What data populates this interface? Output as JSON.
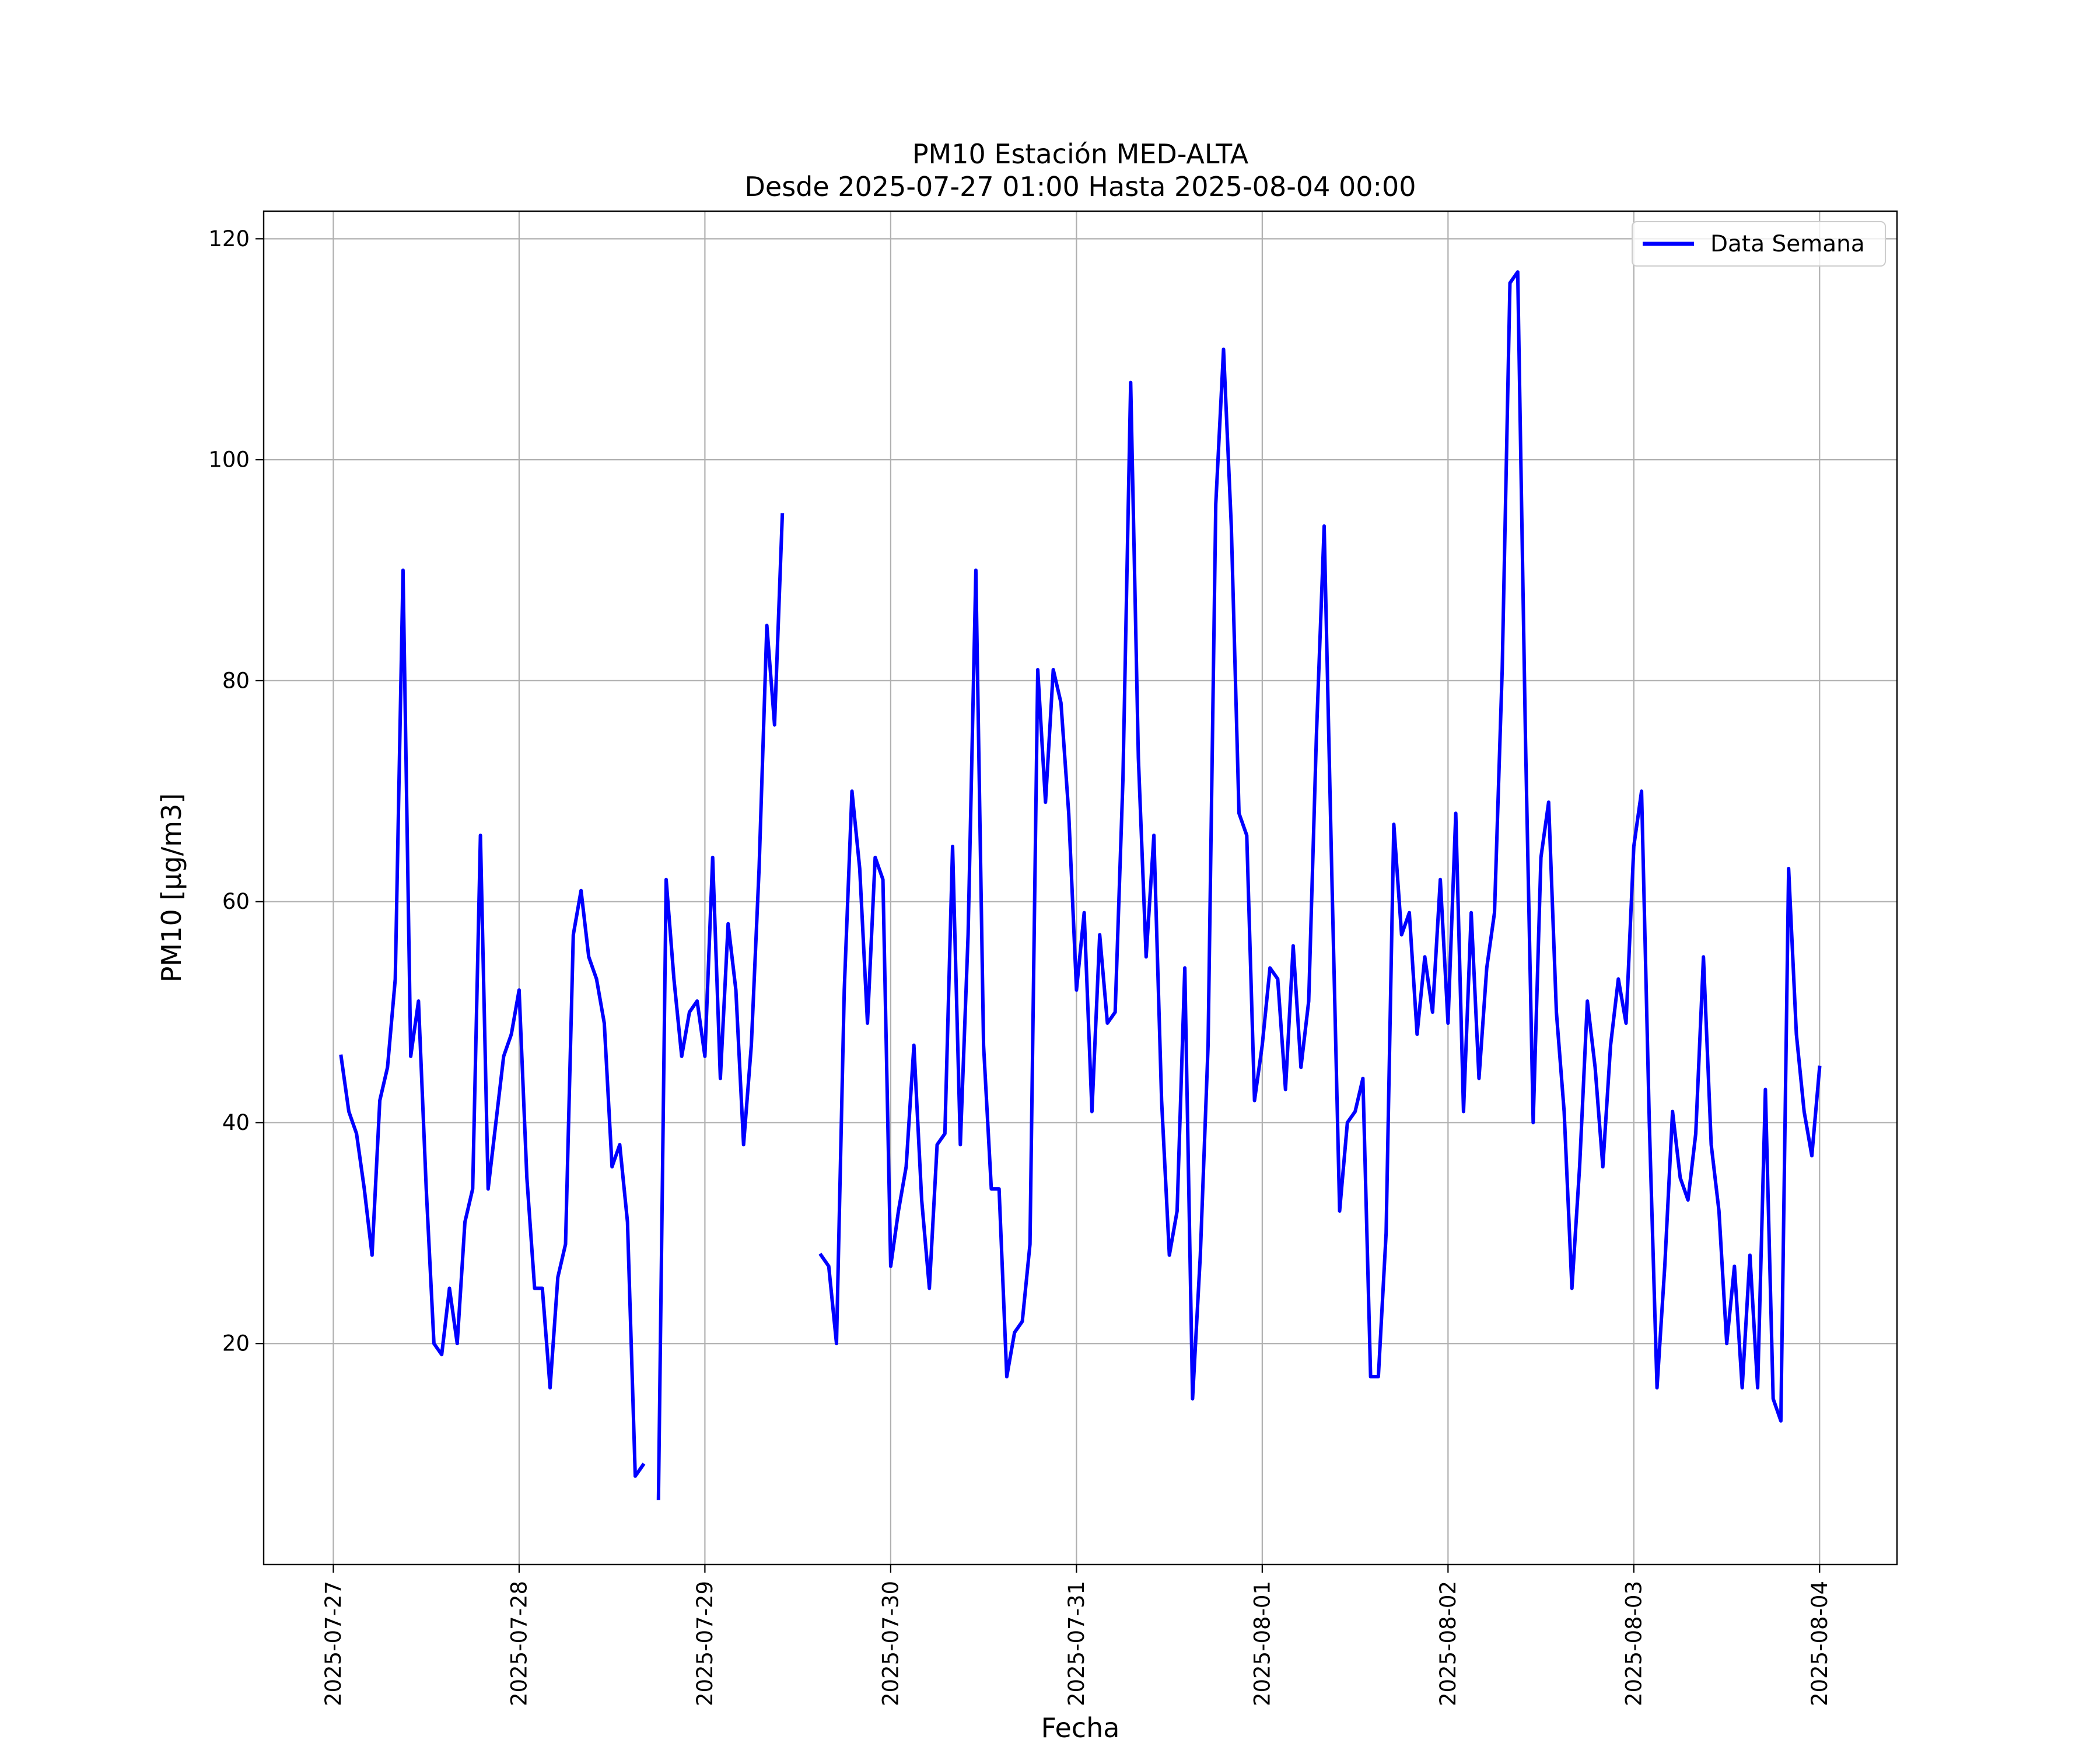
{
  "chart_data": {
    "type": "line",
    "title": "PM10 Estación MED-ALTA",
    "subtitle": "Desde 2025-07-27 01:00 Hasta 2025-08-04 00:00",
    "xlabel": "Fecha",
    "ylabel": "PM10 [μg/m3]",
    "x_tick_labels": [
      "2025-07-27",
      "2025-07-28",
      "2025-07-29",
      "2025-07-30",
      "2025-07-31",
      "2025-08-01",
      "2025-08-02",
      "2025-08-03",
      "2025-08-04"
    ],
    "y_ticks": [
      20,
      40,
      60,
      80,
      100,
      120
    ],
    "xlim": [
      "2025-07-26 15:00",
      "2025-08-04 10:00"
    ],
    "ylim": [
      0,
      122.5
    ],
    "grid": true,
    "legend_position": "top-right",
    "series": [
      {
        "name": "Data Semana",
        "color": "#0000ff",
        "points": [
          [
            "2025-07-27 01:00",
            46
          ],
          [
            "2025-07-27 02:00",
            41
          ],
          [
            "2025-07-27 03:00",
            39
          ],
          [
            "2025-07-27 04:00",
            34
          ],
          [
            "2025-07-27 05:00",
            28
          ],
          [
            "2025-07-27 06:00",
            42
          ],
          [
            "2025-07-27 07:00",
            45
          ],
          [
            "2025-07-27 08:00",
            53
          ],
          [
            "2025-07-27 09:00",
            90
          ],
          [
            "2025-07-27 10:00",
            46
          ],
          [
            "2025-07-27 11:00",
            51
          ],
          [
            "2025-07-27 12:00",
            34
          ],
          [
            "2025-07-27 13:00",
            20
          ],
          [
            "2025-07-27 14:00",
            19
          ],
          [
            "2025-07-27 15:00",
            25
          ],
          [
            "2025-07-27 16:00",
            20
          ],
          [
            "2025-07-27 17:00",
            31
          ],
          [
            "2025-07-27 18:00",
            34
          ],
          [
            "2025-07-27 19:00",
            66
          ],
          [
            "2025-07-27 20:00",
            34
          ],
          [
            "2025-07-27 21:00",
            40
          ],
          [
            "2025-07-27 22:00",
            46
          ],
          [
            "2025-07-27 23:00",
            48
          ],
          [
            "2025-07-28 00:00",
            52
          ],
          [
            "2025-07-28 01:00",
            35
          ],
          [
            "2025-07-28 02:00",
            25
          ],
          [
            "2025-07-28 03:00",
            25
          ],
          [
            "2025-07-28 04:00",
            16
          ],
          [
            "2025-07-28 05:00",
            26
          ],
          [
            "2025-07-28 06:00",
            29
          ],
          [
            "2025-07-28 07:00",
            57
          ],
          [
            "2025-07-28 08:00",
            61
          ],
          [
            "2025-07-28 09:00",
            55
          ],
          [
            "2025-07-28 10:00",
            53
          ],
          [
            "2025-07-28 11:00",
            49
          ],
          [
            "2025-07-28 12:00",
            36
          ],
          [
            "2025-07-28 13:00",
            38
          ],
          [
            "2025-07-28 14:00",
            31
          ],
          [
            "2025-07-28 15:00",
            8
          ],
          [
            "2025-07-28 16:00",
            9
          ],
          [
            "2025-07-28 17:00",
            null
          ],
          [
            "2025-07-28 18:00",
            6
          ],
          [
            "2025-07-28 19:00",
            62
          ],
          [
            "2025-07-28 20:00",
            53
          ],
          [
            "2025-07-28 21:00",
            46
          ],
          [
            "2025-07-28 22:00",
            50
          ],
          [
            "2025-07-28 23:00",
            51
          ],
          [
            "2025-07-29 00:00",
            46
          ],
          [
            "2025-07-29 01:00",
            64
          ],
          [
            "2025-07-29 02:00",
            44
          ],
          [
            "2025-07-29 03:00",
            58
          ],
          [
            "2025-07-29 04:00",
            52
          ],
          [
            "2025-07-29 05:00",
            38
          ],
          [
            "2025-07-29 06:00",
            47
          ],
          [
            "2025-07-29 07:00",
            63
          ],
          [
            "2025-07-29 08:00",
            85
          ],
          [
            "2025-07-29 09:00",
            76
          ],
          [
            "2025-07-29 10:00",
            95
          ],
          [
            "2025-07-29 11:00",
            null
          ],
          [
            "2025-07-29 15:00",
            28
          ],
          [
            "2025-07-29 16:00",
            27
          ],
          [
            "2025-07-29 17:00",
            20
          ],
          [
            "2025-07-29 18:00",
            52
          ],
          [
            "2025-07-29 19:00",
            70
          ],
          [
            "2025-07-29 20:00",
            63
          ],
          [
            "2025-07-29 21:00",
            49
          ],
          [
            "2025-07-29 22:00",
            64
          ],
          [
            "2025-07-29 23:00",
            62
          ],
          [
            "2025-07-30 00:00",
            27
          ],
          [
            "2025-07-30 01:00",
            32
          ],
          [
            "2025-07-30 02:00",
            36
          ],
          [
            "2025-07-30 03:00",
            47
          ],
          [
            "2025-07-30 04:00",
            33
          ],
          [
            "2025-07-30 05:00",
            25
          ],
          [
            "2025-07-30 06:00",
            38
          ],
          [
            "2025-07-30 07:00",
            39
          ],
          [
            "2025-07-30 08:00",
            65
          ],
          [
            "2025-07-30 09:00",
            38
          ],
          [
            "2025-07-30 10:00",
            57
          ],
          [
            "2025-07-30 11:00",
            90
          ],
          [
            "2025-07-30 12:00",
            47
          ],
          [
            "2025-07-30 13:00",
            34
          ],
          [
            "2025-07-30 14:00",
            34
          ],
          [
            "2025-07-30 15:00",
            17
          ],
          [
            "2025-07-30 16:00",
            21
          ],
          [
            "2025-07-30 17:00",
            22
          ],
          [
            "2025-07-30 18:00",
            29
          ],
          [
            "2025-07-30 19:00",
            81
          ],
          [
            "2025-07-30 20:00",
            69
          ],
          [
            "2025-07-30 21:00",
            81
          ],
          [
            "2025-07-30 22:00",
            78
          ],
          [
            "2025-07-30 23:00",
            68
          ],
          [
            "2025-07-31 00:00",
            52
          ],
          [
            "2025-07-31 01:00",
            59
          ],
          [
            "2025-07-31 02:00",
            41
          ],
          [
            "2025-07-31 03:00",
            57
          ],
          [
            "2025-07-31 04:00",
            49
          ],
          [
            "2025-07-31 05:00",
            50
          ],
          [
            "2025-07-31 06:00",
            71
          ],
          [
            "2025-07-31 07:00",
            107
          ],
          [
            "2025-07-31 08:00",
            73
          ],
          [
            "2025-07-31 09:00",
            55
          ],
          [
            "2025-07-31 10:00",
            66
          ],
          [
            "2025-07-31 11:00",
            42
          ],
          [
            "2025-07-31 12:00",
            28
          ],
          [
            "2025-07-31 13:00",
            32
          ],
          [
            "2025-07-31 14:00",
            54
          ],
          [
            "2025-07-31 15:00",
            15
          ],
          [
            "2025-07-31 16:00",
            28
          ],
          [
            "2025-07-31 17:00",
            47
          ],
          [
            "2025-07-31 18:00",
            96
          ],
          [
            "2025-07-31 19:00",
            110
          ],
          [
            "2025-07-31 20:00",
            94
          ],
          [
            "2025-07-31 21:00",
            68
          ],
          [
            "2025-07-31 22:00",
            66
          ],
          [
            "2025-07-31 23:00",
            42
          ],
          [
            "2025-08-01 00:00",
            47
          ],
          [
            "2025-08-01 01:00",
            54
          ],
          [
            "2025-08-01 02:00",
            53
          ],
          [
            "2025-08-01 03:00",
            43
          ],
          [
            "2025-08-01 04:00",
            56
          ],
          [
            "2025-08-01 05:00",
            45
          ],
          [
            "2025-08-01 06:00",
            51
          ],
          [
            "2025-08-01 07:00",
            75
          ],
          [
            "2025-08-01 08:00",
            94
          ],
          [
            "2025-08-01 09:00",
            62
          ],
          [
            "2025-08-01 10:00",
            32
          ],
          [
            "2025-08-01 11:00",
            40
          ],
          [
            "2025-08-01 12:00",
            41
          ],
          [
            "2025-08-01 13:00",
            44
          ],
          [
            "2025-08-01 14:00",
            17
          ],
          [
            "2025-08-01 15:00",
            17
          ],
          [
            "2025-08-01 16:00",
            30
          ],
          [
            "2025-08-01 17:00",
            67
          ],
          [
            "2025-08-01 18:00",
            57
          ],
          [
            "2025-08-01 19:00",
            59
          ],
          [
            "2025-08-01 20:00",
            48
          ],
          [
            "2025-08-01 21:00",
            55
          ],
          [
            "2025-08-01 22:00",
            50
          ],
          [
            "2025-08-01 23:00",
            62
          ],
          [
            "2025-08-02 00:00",
            49
          ],
          [
            "2025-08-02 01:00",
            68
          ],
          [
            "2025-08-02 02:00",
            41
          ],
          [
            "2025-08-02 03:00",
            59
          ],
          [
            "2025-08-02 04:00",
            44
          ],
          [
            "2025-08-02 05:00",
            54
          ],
          [
            "2025-08-02 06:00",
            59
          ],
          [
            "2025-08-02 07:00",
            81
          ],
          [
            "2025-08-02 08:00",
            116
          ],
          [
            "2025-08-02 09:00",
            117
          ],
          [
            "2025-08-02 10:00",
            75
          ],
          [
            "2025-08-02 11:00",
            40
          ],
          [
            "2025-08-02 12:00",
            64
          ],
          [
            "2025-08-02 13:00",
            69
          ],
          [
            "2025-08-02 14:00",
            50
          ],
          [
            "2025-08-02 15:00",
            41
          ],
          [
            "2025-08-02 16:00",
            25
          ],
          [
            "2025-08-02 17:00",
            36
          ],
          [
            "2025-08-02 18:00",
            51
          ],
          [
            "2025-08-02 19:00",
            45
          ],
          [
            "2025-08-02 20:00",
            36
          ],
          [
            "2025-08-02 21:00",
            47
          ],
          [
            "2025-08-02 22:00",
            53
          ],
          [
            "2025-08-02 23:00",
            49
          ],
          [
            "2025-08-03 00:00",
            65
          ],
          [
            "2025-08-03 01:00",
            70
          ],
          [
            "2025-08-03 02:00",
            40
          ],
          [
            "2025-08-03 03:00",
            16
          ],
          [
            "2025-08-03 04:00",
            27
          ],
          [
            "2025-08-03 05:00",
            41
          ],
          [
            "2025-08-03 06:00",
            35
          ],
          [
            "2025-08-03 07:00",
            33
          ],
          [
            "2025-08-03 08:00",
            39
          ],
          [
            "2025-08-03 09:00",
            55
          ],
          [
            "2025-08-03 10:00",
            38
          ],
          [
            "2025-08-03 11:00",
            32
          ],
          [
            "2025-08-03 12:00",
            20
          ],
          [
            "2025-08-03 13:00",
            27
          ],
          [
            "2025-08-03 14:00",
            16
          ],
          [
            "2025-08-03 15:00",
            28
          ],
          [
            "2025-08-03 16:00",
            16
          ],
          [
            "2025-08-03 17:00",
            43
          ],
          [
            "2025-08-03 18:00",
            15
          ],
          [
            "2025-08-03 19:00",
            13
          ],
          [
            "2025-08-03 20:00",
            63
          ],
          [
            "2025-08-03 21:00",
            48
          ],
          [
            "2025-08-03 22:00",
            41
          ],
          [
            "2025-08-03 23:00",
            37
          ],
          [
            "2025-08-04 00:00",
            45
          ]
        ]
      }
    ]
  }
}
